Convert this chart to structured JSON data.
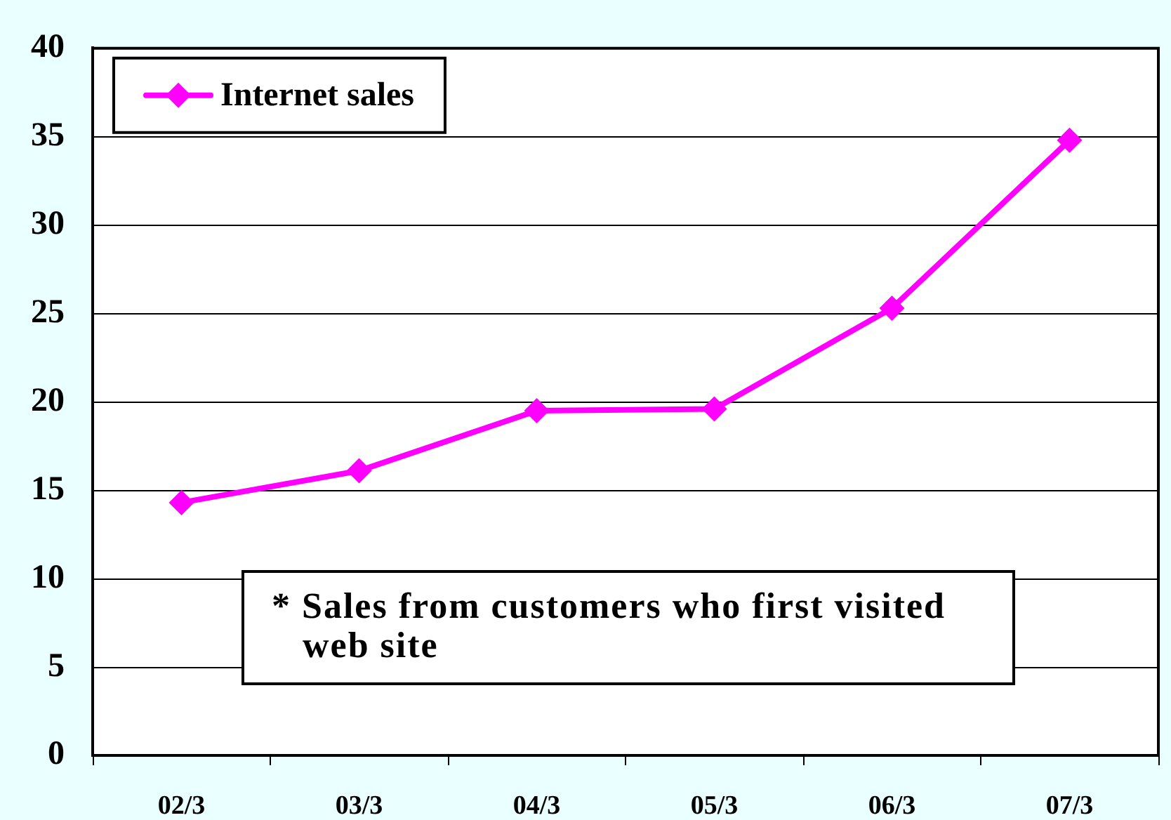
{
  "chart_data": {
    "type": "line",
    "categories": [
      "02/3",
      "03/3",
      "04/3",
      "05/3",
      "06/3",
      "07/3"
    ],
    "series": [
      {
        "name": "Internet sales",
        "color": "#ff00ff",
        "values": [
          14.3,
          16.1,
          19.5,
          19.6,
          25.3,
          34.8
        ]
      }
    ],
    "ylim": [
      0,
      40
    ],
    "yticks": [
      0,
      5,
      10,
      15,
      20,
      25,
      30,
      35,
      40
    ],
    "grid": "y",
    "legend": "top left",
    "marker": "diamond",
    "line_style": "solid",
    "annotations": [
      "* Sales from customers who first visited web site"
    ]
  }
}
